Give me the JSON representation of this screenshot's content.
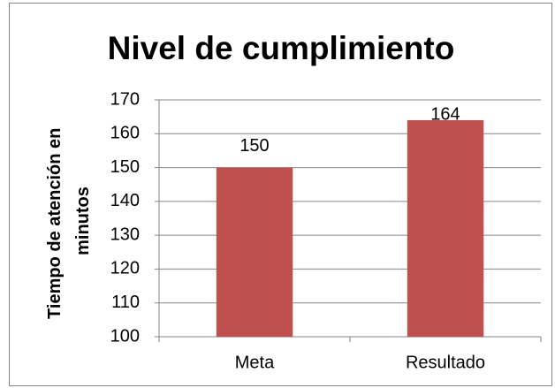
{
  "chart_data": {
    "type": "bar",
    "title": "Nivel de cumplimiento",
    "y_label": "Tiempo de atención en minutos",
    "categories": [
      "Meta",
      "Resultado"
    ],
    "values": [
      150,
      164
    ],
    "color": "#c0504d",
    "ylim": [
      100,
      170
    ],
    "yticks": [
      100,
      110,
      120,
      130,
      140,
      150,
      160,
      170
    ],
    "grid": true,
    "data_labels": true
  }
}
